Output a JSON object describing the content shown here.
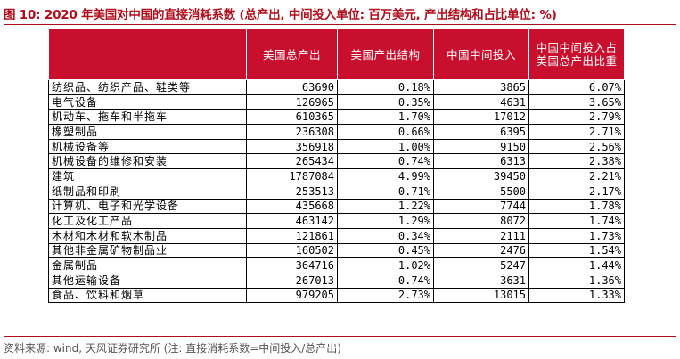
{
  "title": "图 10: 2020 年美国对中国的直接消耗系数 (总产出, 中间投入单位: 百万美元, 产出结构和占比单位: %)",
  "table": {
    "headers": [
      "",
      "美国总产出",
      "美国产出结构",
      "中国中间投入",
      "中国中间投入占美国总产出比重"
    ],
    "rows": [
      [
        "纺织品、纺织产品、鞋类等",
        "63690",
        "0.18%",
        "3865",
        "6.07%"
      ],
      [
        "电气设备",
        "126965",
        "0.35%",
        "4631",
        "3.65%"
      ],
      [
        "机动车、拖车和半拖车",
        "610365",
        "1.70%",
        "17012",
        "2.79%"
      ],
      [
        "橡塑制品",
        "236308",
        "0.66%",
        "6395",
        "2.71%"
      ],
      [
        "机械设备等",
        "356918",
        "1.00%",
        "9150",
        "2.56%"
      ],
      [
        "机械设备的维修和安装",
        "265434",
        "0.74%",
        "6313",
        "2.38%"
      ],
      [
        "建筑",
        "1787084",
        "4.99%",
        "39450",
        "2.21%"
      ],
      [
        "纸制品和印刷",
        "253513",
        "0.71%",
        "5500",
        "2.17%"
      ],
      [
        "计算机、电子和光学设备",
        "435668",
        "1.22%",
        "7744",
        "1.78%"
      ],
      [
        "化工及化工产品",
        "463142",
        "1.29%",
        "8072",
        "1.74%"
      ],
      [
        "木材和木材和软木制品",
        "121861",
        "0.34%",
        "2111",
        "1.73%"
      ],
      [
        "其他非金属矿物制品业",
        "160502",
        "0.45%",
        "2476",
        "1.54%"
      ],
      [
        "金属制品",
        "364716",
        "1.02%",
        "5247",
        "1.44%"
      ],
      [
        "其他运输设备",
        "267013",
        "0.74%",
        "3631",
        "1.36%"
      ],
      [
        "食品、饮料和烟草",
        "979205",
        "2.73%",
        "13015",
        "1.33%"
      ]
    ]
  },
  "source": "资料来源: wind, 天风证券研究所 (注: 直接消耗系数=中间投入/总产出)"
}
